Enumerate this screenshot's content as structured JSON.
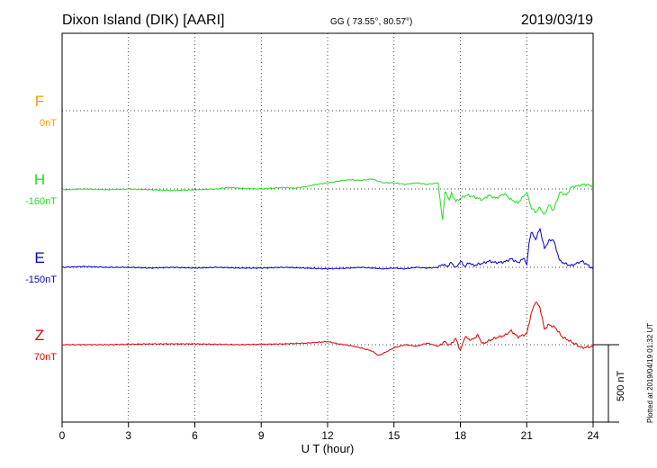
{
  "chart_data": {
    "type": "line",
    "title": "Dixon Island (DIK)  [AARI]",
    "coords": "GG ( 73.55°,  80.57°)",
    "date": "2019/03/19",
    "xlabel": "U T (hour)",
    "xlim": [
      0,
      24
    ],
    "x_ticks": [
      "0",
      "3",
      "6",
      "9",
      "12",
      "15",
      "18",
      "21",
      "24"
    ],
    "scale_label": "500 nT",
    "scale_nT": 500,
    "footer": "Plotted at 2019/04/19 01:32 UT",
    "grid": true,
    "colors": {
      "F": "#f0a000",
      "H": "#22dd22",
      "E": "#0000cc",
      "Z": "#dd0000"
    },
    "series": [
      {
        "name": "F",
        "baseline_label": "0nT",
        "x": [],
        "values": []
      },
      {
        "name": "H",
        "baseline_label": "-160nT",
        "x": [
          0,
          1,
          2,
          3,
          4,
          5,
          6,
          7,
          7.5,
          8,
          9,
          10,
          10.5,
          11,
          11.5,
          12,
          12.5,
          13,
          13.5,
          14,
          14.5,
          15,
          15.5,
          16,
          16.5,
          17,
          17.1,
          17.2,
          17.3,
          17.4,
          17.5,
          17.6,
          17.8,
          18,
          18.3,
          18.6,
          19,
          19.3,
          19.6,
          20,
          20.3,
          20.6,
          20.9,
          21,
          21.2,
          21.4,
          21.6,
          21.8,
          22,
          22.2,
          22.5,
          22.8,
          23,
          23.3,
          23.6,
          24
        ],
        "values": [
          -5,
          0,
          -5,
          0,
          -5,
          -10,
          -5,
          0,
          10,
          5,
          0,
          10,
          5,
          15,
          30,
          40,
          50,
          60,
          55,
          65,
          40,
          40,
          30,
          40,
          30,
          40,
          -100,
          -200,
          -20,
          -40,
          -70,
          -30,
          -80,
          -60,
          -40,
          -50,
          -70,
          -40,
          -60,
          -30,
          -70,
          -90,
          -40,
          -20,
          -120,
          -150,
          -120,
          -170,
          -100,
          -140,
          -20,
          -40,
          10,
          20,
          30,
          20
        ]
      },
      {
        "name": "E",
        "baseline_label": "-150nT",
        "x": [
          0,
          1,
          2,
          3,
          4,
          5,
          6,
          7,
          8,
          9,
          10,
          11,
          12,
          13,
          13.5,
          14,
          14.5,
          15,
          15.5,
          16,
          16.5,
          17,
          17.2,
          17.4,
          17.6,
          17.8,
          18,
          18.2,
          18.4,
          18.6,
          18.8,
          19,
          19.3,
          19.6,
          20,
          20.3,
          20.6,
          20.9,
          21,
          21.1,
          21.2,
          21.4,
          21.6,
          21.8,
          22,
          22.2,
          22.5,
          22.8,
          23,
          23.5,
          24
        ],
        "values": [
          0,
          5,
          0,
          0,
          -5,
          0,
          -5,
          0,
          -5,
          -5,
          0,
          -5,
          -10,
          -5,
          0,
          -5,
          -10,
          -5,
          -10,
          0,
          -5,
          0,
          20,
          5,
          30,
          -5,
          40,
          5,
          30,
          10,
          20,
          25,
          40,
          30,
          35,
          55,
          30,
          60,
          10,
          150,
          230,
          180,
          250,
          120,
          170,
          180,
          40,
          20,
          10,
          40,
          -10
        ]
      },
      {
        "name": "Z",
        "baseline_label": "70nT",
        "x": [
          0,
          2,
          4,
          6,
          8,
          10,
          11,
          12,
          12.5,
          13,
          13.5,
          14,
          14.3,
          14.6,
          15,
          15.5,
          16,
          16.5,
          17,
          17.3,
          17.5,
          17.8,
          18,
          18.2,
          18.5,
          18.8,
          19,
          19.5,
          20,
          20.3,
          20.6,
          21,
          21.2,
          21.4,
          21.6,
          21.8,
          22,
          22.3,
          22.6,
          23,
          23.5,
          24
        ],
        "values": [
          0,
          0,
          5,
          5,
          0,
          5,
          10,
          20,
          5,
          -5,
          -20,
          -40,
          -70,
          -50,
          -20,
          0,
          -10,
          10,
          -10,
          20,
          -5,
          40,
          -40,
          50,
          30,
          60,
          5,
          40,
          60,
          90,
          50,
          70,
          200,
          280,
          240,
          100,
          130,
          110,
          50,
          20,
          -20,
          -10
        ]
      }
    ]
  }
}
